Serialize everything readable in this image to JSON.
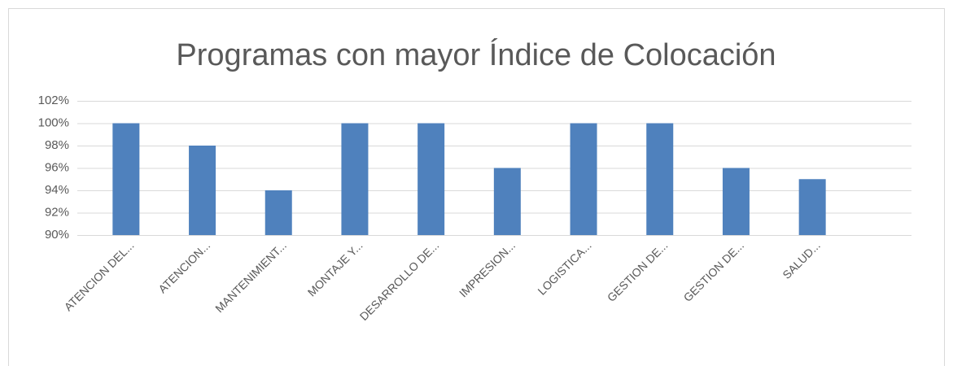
{
  "chart_data": {
    "type": "bar",
    "title": "Programas con mayor Índice de Colocación",
    "categories": [
      "ATENCION DEL...",
      "ATENCION...",
      "MANTENIMIENT...",
      "MONTAJE Y...",
      "DESARROLLO DE...",
      "IMPRESION...",
      "LOGISTICA...",
      "GESTION DE...",
      "GESTION DE...",
      "SALUD..."
    ],
    "values": [
      100,
      98,
      94,
      100,
      100,
      96,
      100,
      100,
      96,
      95
    ],
    "color": "#4f81bd",
    "ylim": [
      90,
      102
    ],
    "yticks": [
      {
        "value": 90,
        "label": "90%"
      },
      {
        "value": 92,
        "label": "92%"
      },
      {
        "value": 94,
        "label": "94%"
      },
      {
        "value": 96,
        "label": "96%"
      },
      {
        "value": 98,
        "label": "98%"
      },
      {
        "value": 100,
        "label": "100%"
      },
      {
        "value": 102,
        "label": "102%"
      }
    ],
    "grid": true
  }
}
